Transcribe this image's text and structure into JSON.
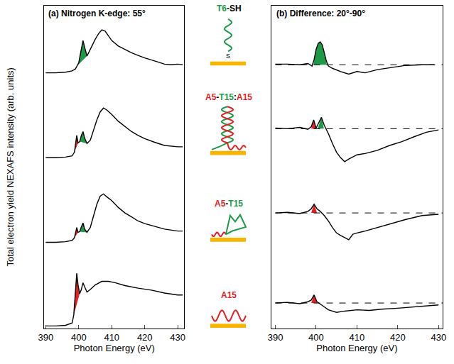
{
  "chart_data": [
    {
      "type": "line",
      "title": "(a) Nitrogen K-edge: 55°",
      "x_label": "Photon Energy (eV)",
      "y_label": "Total electron yield NEXAFS intensity (arb. units)",
      "xlim": [
        389.5,
        432
      ],
      "ylim": [
        0,
        10
      ],
      "xticks": [
        390,
        400,
        410,
        420,
        430
      ],
      "tick_labels": "x",
      "grid": false,
      "series": [
        {
          "type": "line",
          "color": "#000000",
          "line_style": "solid",
          "x": [
            390,
            393,
            396,
            398,
            399,
            399.5,
            400,
            400.5,
            401,
            401.3,
            401.8,
            402.5,
            403,
            404,
            405,
            406,
            407,
            408,
            409,
            410,
            412,
            414,
            416,
            418,
            420,
            423,
            426,
            428,
            430,
            431.5
          ],
          "values": [
            7.92,
            7.92,
            7.94,
            7.98,
            8.04,
            8.13,
            8.23,
            8.5,
            8.75,
            8.92,
            8.71,
            8.44,
            8.54,
            8.75,
            8.96,
            9.13,
            9.25,
            9.21,
            9.06,
            8.92,
            8.75,
            8.65,
            8.54,
            8.46,
            8.38,
            8.29,
            8.19,
            8.17,
            8.19,
            8.17
          ]
        },
        {
          "type": "area",
          "color": "#1d9a48",
          "x": [
            399.5,
            400,
            400.5,
            401,
            401.3,
            401.8,
            402.5
          ],
          "values": [
            8.13,
            8.23,
            8.5,
            8.75,
            8.92,
            8.71,
            8.44
          ]
        },
        {
          "type": "line",
          "color": "#000000",
          "line_style": "solid",
          "x": [
            390,
            393,
            396,
            398,
            398.7,
            399.1,
            399.4,
            399.8,
            400.3,
            400.8,
            401.3,
            401.8,
            402.5,
            403.5,
            404.5,
            405.5,
            406.5,
            407.5,
            408.5,
            410,
            412,
            414,
            416,
            418,
            420,
            423,
            426,
            430,
            431.5
          ],
          "values": [
            5.29,
            5.29,
            5.31,
            5.35,
            5.46,
            5.73,
            5.98,
            5.75,
            5.79,
            5.98,
            6.1,
            5.9,
            5.73,
            5.83,
            6.15,
            6.46,
            6.71,
            6.83,
            6.77,
            6.63,
            6.42,
            6.25,
            6.1,
            5.98,
            5.88,
            5.77,
            5.67,
            5.63,
            5.63
          ]
        },
        {
          "type": "area",
          "color": "#e41f26",
          "x": [
            398.7,
            399.1,
            399.4,
            399.8
          ],
          "values": [
            5.46,
            5.73,
            5.98,
            5.75
          ]
        },
        {
          "type": "area",
          "color": "#1d9a48",
          "x": [
            400.3,
            400.8,
            401.3,
            401.8,
            402.5
          ],
          "values": [
            5.79,
            5.98,
            6.1,
            5.9,
            5.73
          ]
        },
        {
          "type": "line",
          "color": "#000000",
          "line_style": "solid",
          "x": [
            390,
            393,
            396,
            398,
            398.7,
            399.1,
            399.4,
            399.8,
            400.3,
            400.8,
            401.3,
            401.8,
            402.5,
            403.5,
            404.5,
            405.5,
            406.5,
            407.5,
            408.5,
            410,
            412,
            414,
            416,
            418,
            420,
            423,
            426,
            430,
            431.5
          ],
          "values": [
            2.67,
            2.67,
            2.69,
            2.73,
            2.81,
            2.98,
            3.13,
            2.98,
            3.0,
            3.15,
            3.27,
            3.08,
            2.98,
            3.13,
            3.5,
            3.85,
            4.1,
            4.17,
            4.08,
            3.96,
            3.75,
            3.58,
            3.46,
            3.33,
            3.25,
            3.17,
            3.08,
            3.02,
            3.02
          ]
        },
        {
          "type": "area",
          "color": "#e41f26",
          "x": [
            398.7,
            399.1,
            399.4,
            399.8
          ],
          "values": [
            2.81,
            2.98,
            3.13,
            2.98
          ]
        },
        {
          "type": "area",
          "color": "#1d9a48",
          "x": [
            400.3,
            400.8,
            401.3,
            401.8,
            402.5
          ],
          "values": [
            3.0,
            3.15,
            3.27,
            3.08,
            2.98
          ]
        },
        {
          "type": "line",
          "color": "#000000",
          "line_style": "solid",
          "x": [
            390,
            393,
            396,
            398,
            398.5,
            399,
            399.4,
            399.8,
            400.3,
            400.8,
            401.3,
            401.8,
            402.5,
            403.5,
            405,
            407,
            409,
            411,
            414,
            418,
            422,
            426,
            430,
            431.5
          ],
          "values": [
            0.08,
            0.08,
            0.1,
            0.17,
            0.42,
            1.15,
            1.71,
            1.35,
            1.08,
            1.21,
            1.42,
            1.29,
            1.13,
            1.21,
            1.35,
            1.46,
            1.46,
            1.42,
            1.33,
            1.25,
            1.19,
            1.1,
            1.04,
            1.04
          ]
        },
        {
          "type": "area",
          "color": "#e41f26",
          "x": [
            398.5,
            399,
            399.4,
            399.8,
            400.3
          ],
          "values": [
            0.42,
            1.15,
            1.71,
            1.35,
            1.08
          ]
        }
      ]
    },
    {
      "type": "line",
      "title": "(b) Difference: 20°-90°",
      "x_label": "Photon Energy (eV)",
      "xlim": [
        389,
        431
      ],
      "ylim": [
        0,
        10
      ],
      "xticks": [
        390,
        400,
        410,
        420,
        430
      ],
      "tick_labels": "x",
      "grid": false,
      "series": [
        {
          "type": "line",
          "color": "#000000",
          "line_style": "dashed",
          "x": [
            390,
            431
          ],
          "values": [
            8.17,
            8.17
          ]
        },
        {
          "type": "line",
          "color": "#000000",
          "line_style": "dashed",
          "x": [
            390,
            431
          ],
          "values": [
            6.19,
            6.19
          ]
        },
        {
          "type": "line",
          "color": "#000000",
          "line_style": "dashed",
          "x": [
            390,
            431
          ],
          "values": [
            3.58,
            3.58
          ]
        },
        {
          "type": "line",
          "color": "#000000",
          "line_style": "dashed",
          "x": [
            390,
            431
          ],
          "values": [
            0.79,
            0.79
          ]
        },
        {
          "type": "area",
          "color": "#1d9a48",
          "x": [
            399.4,
            399.5,
            400,
            400.5,
            401,
            401.5,
            402,
            402.5,
            402.6
          ],
          "values": [
            8.17,
            8.33,
            8.65,
            8.83,
            8.88,
            8.79,
            8.54,
            8.29,
            8.17
          ]
        },
        {
          "type": "line",
          "color": "#000000",
          "line_style": "solid",
          "x": [
            390,
            393,
            396,
            398,
            399,
            399.5,
            400,
            400.5,
            401,
            401.5,
            402,
            402.5,
            403,
            404,
            406,
            408,
            410,
            412,
            415,
            418,
            422,
            426,
            429
          ],
          "values": [
            8.19,
            8.19,
            8.17,
            8.21,
            8.13,
            8.33,
            8.65,
            8.83,
            8.88,
            8.79,
            8.54,
            8.29,
            8.13,
            8.06,
            7.96,
            7.88,
            7.96,
            7.92,
            8.02,
            8.08,
            8.15,
            8.17,
            8.17
          ]
        },
        {
          "type": "area",
          "color": "#e41f26",
          "x": [
            398.8,
            399.4,
            400
          ],
          "values": [
            6.19,
            6.46,
            6.19
          ]
        },
        {
          "type": "area",
          "color": "#1d9a48",
          "x": [
            400.4,
            401.3,
            401.9
          ],
          "values": [
            6.19,
            6.54,
            6.19
          ]
        },
        {
          "type": "line",
          "color": "#000000",
          "line_style": "solid",
          "x": [
            390,
            393,
            396,
            398,
            398.8,
            399.4,
            400,
            400.6,
            401.3,
            402,
            403,
            404,
            405,
            406,
            407,
            408,
            409,
            410,
            412,
            415,
            418,
            421,
            424,
            427,
            430
          ],
          "values": [
            6.21,
            6.19,
            6.23,
            6.17,
            6.25,
            6.46,
            6.21,
            6.35,
            6.54,
            6.29,
            6.04,
            5.73,
            5.46,
            5.29,
            5.17,
            5.25,
            5.31,
            5.38,
            5.42,
            5.52,
            5.67,
            5.79,
            5.94,
            6.08,
            6.15
          ]
        },
        {
          "type": "area",
          "color": "#e41f26",
          "x": [
            398.8,
            399.5,
            400.2
          ],
          "values": [
            3.58,
            3.85,
            3.58
          ]
        },
        {
          "type": "line",
          "color": "#000000",
          "line_style": "solid",
          "x": [
            390,
            393,
            396,
            398,
            398.8,
            399.5,
            400.2,
            401,
            402,
            403,
            404,
            405,
            406,
            407,
            408,
            409,
            410,
            412,
            415,
            418,
            422,
            426,
            430
          ],
          "values": [
            3.58,
            3.6,
            3.56,
            3.63,
            3.71,
            3.85,
            3.71,
            3.63,
            3.5,
            3.33,
            3.13,
            2.96,
            2.88,
            2.81,
            2.75,
            2.92,
            2.96,
            3.02,
            3.13,
            3.23,
            3.38,
            3.5,
            3.54
          ]
        },
        {
          "type": "area",
          "color": "#e41f26",
          "x": [
            398.8,
            399.5,
            400.2
          ],
          "values": [
            0.79,
            1.04,
            0.79
          ]
        },
        {
          "type": "line",
          "color": "#000000",
          "line_style": "solid",
          "x": [
            390,
            393,
            396,
            398,
            398.8,
            399.5,
            400.2,
            401,
            402,
            403,
            405,
            407,
            410,
            413,
            416,
            420,
            424,
            428,
            430
          ],
          "values": [
            0.79,
            0.81,
            0.77,
            0.83,
            0.88,
            1.04,
            0.83,
            0.75,
            0.67,
            0.58,
            0.5,
            0.54,
            0.58,
            0.56,
            0.6,
            0.63,
            0.67,
            0.71,
            0.73
          ]
        }
      ]
    }
  ],
  "schematic": {
    "surface_color": "#f7b500",
    "items": [
      {
        "label": [
          {
            "text": "T6",
            "color": "#1d9a48"
          },
          {
            "text": "-SH",
            "color": "#000000"
          }
        ],
        "anchor_atom": "S"
      },
      {
        "label": [
          {
            "text": "A5",
            "color": "#e41f26"
          },
          {
            "text": "-",
            "color": "#000000"
          },
          {
            "text": "T15",
            "color": "#1d9a48"
          },
          {
            "text": ":",
            "color": "#000000"
          },
          {
            "text": "A15",
            "color": "#e41f26"
          }
        ]
      },
      {
        "label": [
          {
            "text": "A5",
            "color": "#e41f26"
          },
          {
            "text": "-",
            "color": "#000000"
          },
          {
            "text": "T15",
            "color": "#1d9a48"
          }
        ]
      },
      {
        "label": [
          {
            "text": "A15",
            "color": "#e41f26"
          }
        ]
      }
    ]
  }
}
